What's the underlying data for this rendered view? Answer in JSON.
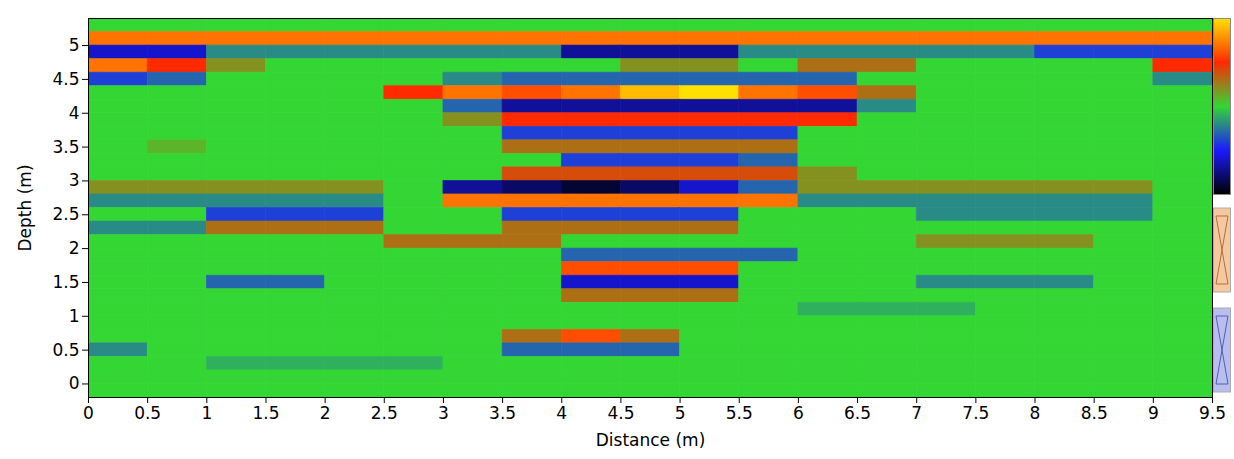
{
  "chart_data": {
    "type": "heatmap",
    "x_label": "Distance (m)",
    "y_label": "Depth (m)",
    "xlim": [
      0,
      9.5
    ],
    "ylim": [
      -0.2,
      5.4
    ],
    "xticks": [
      0,
      0.5,
      1,
      1.5,
      2,
      2.5,
      3,
      3.5,
      4,
      4.5,
      5,
      5.5,
      6,
      6.5,
      7,
      7.5,
      8,
      8.5,
      9,
      9.5
    ],
    "yticks": [
      0,
      0.5,
      1,
      1.5,
      2,
      2.5,
      3,
      3.5,
      4,
      4.5,
      5
    ],
    "x_edges": [
      0,
      0.5,
      1,
      1.5,
      2,
      2.5,
      3,
      3.5,
      4,
      4.5,
      5,
      5.5,
      6,
      6.5,
      7,
      7.5,
      8,
      8.5,
      9,
      9.5
    ],
    "y_edges": [
      5.4,
      5.2,
      5.0,
      4.8,
      4.6,
      4.4,
      4.2,
      4.0,
      3.8,
      3.6,
      3.4,
      3.2,
      3.0,
      2.8,
      2.6,
      2.4,
      2.2,
      2.0,
      1.8,
      1.6,
      1.4,
      1.2,
      1.0,
      0.8,
      0.6,
      0.4,
      0.2,
      0.0,
      -0.2
    ],
    "zlim": [
      -10,
      10
    ],
    "cells": [
      [
        0,
        0,
        0,
        0,
        0,
        0,
        0,
        0,
        0,
        0,
        0,
        0,
        0,
        0,
        0,
        0,
        0,
        0,
        0
      ],
      [
        7,
        7,
        7,
        7,
        7,
        7,
        7,
        7,
        7,
        7,
        7,
        7,
        7,
        7,
        7,
        7,
        7,
        7,
        7
      ],
      [
        -6,
        -6,
        -2,
        -2,
        -2,
        -2,
        -2,
        -2,
        -7,
        -7,
        -7,
        -2,
        -2,
        -2,
        -2,
        -2,
        -4,
        -4,
        -4
      ],
      [
        7,
        5,
        2,
        0,
        0,
        0,
        0,
        0,
        0,
        2,
        2,
        0,
        3,
        3,
        0,
        0,
        0,
        0,
        5
      ],
      [
        -4,
        -3,
        0,
        0,
        0,
        0,
        -2,
        -3,
        -3,
        -3,
        -3,
        -3,
        -3,
        0,
        0,
        0,
        0,
        0,
        -2
      ],
      [
        0,
        0,
        0,
        0,
        0,
        5,
        7,
        6,
        7,
        9,
        10,
        7,
        6,
        3,
        0,
        0,
        0,
        0,
        0
      ],
      [
        0,
        0,
        0,
        0,
        0,
        0,
        -3,
        -7,
        -7,
        -7,
        -7,
        -7,
        -7,
        -2,
        0,
        0,
        0,
        0,
        0
      ],
      [
        0,
        0,
        0,
        0,
        0,
        0,
        2,
        5,
        5,
        5,
        5,
        5,
        5,
        0,
        0,
        0,
        0,
        0,
        0
      ],
      [
        0,
        0,
        0,
        0,
        0,
        0,
        0,
        -4,
        -4,
        -4,
        -4,
        -4,
        0,
        0,
        0,
        0,
        0,
        0,
        0
      ],
      [
        0,
        1,
        0,
        0,
        0,
        0,
        0,
        3,
        3,
        3,
        3,
        3,
        0,
        0,
        0,
        0,
        0,
        0,
        0
      ],
      [
        0,
        0,
        0,
        0,
        0,
        0,
        0,
        0,
        -4,
        -4,
        -4,
        -3,
        0,
        0,
        0,
        0,
        0,
        0,
        0
      ],
      [
        0,
        0,
        0,
        0,
        0,
        0,
        0,
        4,
        4,
        4,
        4,
        4,
        2,
        0,
        0,
        0,
        0,
        0,
        0
      ],
      [
        2,
        2,
        2,
        2,
        2,
        0,
        -7,
        -8,
        -9,
        -8,
        -6,
        -3,
        2,
        2,
        2,
        2,
        2,
        2,
        0
      ],
      [
        -2,
        -2,
        -2,
        -2,
        -2,
        0,
        7,
        7,
        7,
        7,
        7,
        7,
        -2,
        -2,
        -2,
        -2,
        -2,
        -2,
        0
      ],
      [
        0,
        0,
        -4,
        -4,
        -4,
        0,
        0,
        -4,
        -4,
        -4,
        -4,
        0,
        0,
        0,
        -2,
        -2,
        -2,
        -2,
        0
      ],
      [
        -2,
        -2,
        3,
        3,
        3,
        0,
        0,
        3,
        3,
        3,
        3,
        0,
        0,
        0,
        0,
        0,
        0,
        0,
        0
      ],
      [
        0,
        0,
        0,
        0,
        0,
        3,
        3,
        3,
        0,
        0,
        0,
        0,
        0,
        0,
        2,
        2,
        2,
        0,
        0
      ],
      [
        0,
        0,
        0,
        0,
        0,
        0,
        0,
        0,
        -3,
        -3,
        -3,
        -3,
        0,
        0,
        0,
        0,
        0,
        0,
        0
      ],
      [
        0,
        0,
        0,
        0,
        0,
        0,
        0,
        0,
        6,
        6,
        6,
        0,
        0,
        0,
        0,
        0,
        0,
        0,
        0
      ],
      [
        0,
        0,
        -3,
        -3,
        0,
        0,
        0,
        0,
        -6,
        -6,
        -6,
        0,
        0,
        0,
        -2,
        -2,
        -2,
        0,
        0
      ],
      [
        0,
        0,
        0,
        0,
        0,
        0,
        0,
        0,
        3,
        3,
        3,
        0,
        0,
        0,
        0,
        0,
        0,
        0,
        0
      ],
      [
        0,
        0,
        0,
        0,
        0,
        0,
        0,
        0,
        0,
        0,
        0,
        0,
        -1,
        -1,
        -1,
        0,
        0,
        0,
        0
      ],
      [
        0,
        0,
        0,
        0,
        0,
        0,
        0,
        0,
        0,
        0,
        0,
        0,
        0,
        0,
        0,
        0,
        0,
        0,
        0
      ],
      [
        0,
        0,
        0,
        0,
        0,
        0,
        0,
        3,
        6,
        3,
        0,
        0,
        0,
        0,
        0,
        0,
        0,
        0,
        0
      ],
      [
        -2,
        0,
        0,
        0,
        0,
        0,
        0,
        -3,
        -3,
        -3,
        0,
        0,
        0,
        0,
        0,
        0,
        0,
        0,
        0
      ],
      [
        0,
        0,
        -1,
        -1,
        -1,
        -1,
        0,
        0,
        0,
        0,
        0,
        0,
        0,
        0,
        0,
        0,
        0,
        0,
        0
      ],
      [
        0,
        0,
        0,
        0,
        0,
        0,
        0,
        0,
        0,
        0,
        0,
        0,
        0,
        0,
        0,
        0,
        0,
        0,
        0
      ],
      [
        0,
        0,
        0,
        0,
        0,
        0,
        0,
        0,
        0,
        0,
        0,
        0,
        0,
        0,
        0,
        0,
        0,
        0,
        0
      ]
    ]
  }
}
